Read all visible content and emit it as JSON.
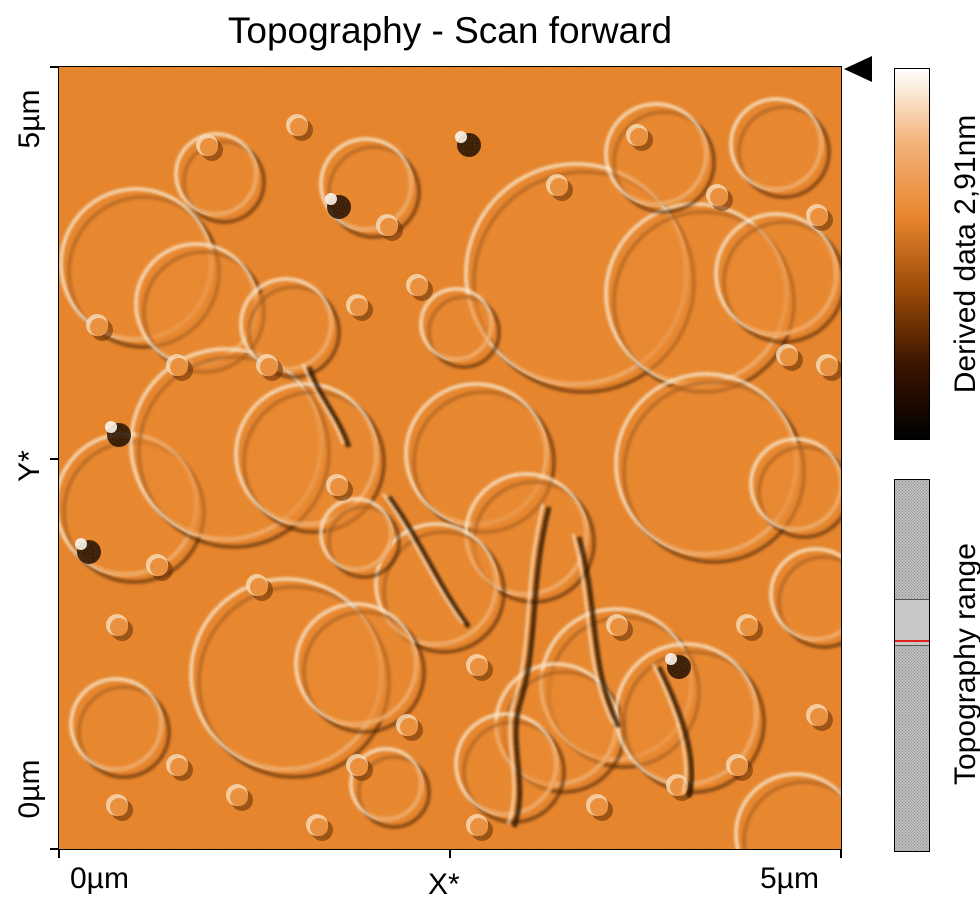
{
  "chart_data": {
    "type": "heatmap",
    "title": "Topography - Scan forward",
    "xlabel": "X*",
    "ylabel": "Y*",
    "x_ticks": [
      "0µm",
      "5µm"
    ],
    "y_ticks": [
      "0µm",
      "5µm"
    ],
    "xlim": [
      0,
      5
    ],
    "ylim": [
      0,
      5
    ],
    "unit": "µm",
    "colorbar": {
      "label": "Derived data 2,91nm",
      "range_nm": 2.91,
      "colors": [
        "#000000",
        "#3a1400",
        "#9a4a08",
        "#e9852e",
        "#f3b27a",
        "#ffffff"
      ]
    },
    "range_indicator": {
      "label": "Topography range",
      "window_fraction": [
        0.32,
        0.44
      ],
      "marker_fraction": 0.43
    },
    "image_description": "Derived-data AFM topography map, 5µm × 5µm, orange colormap with shadowed rounded terrace islands"
  }
}
